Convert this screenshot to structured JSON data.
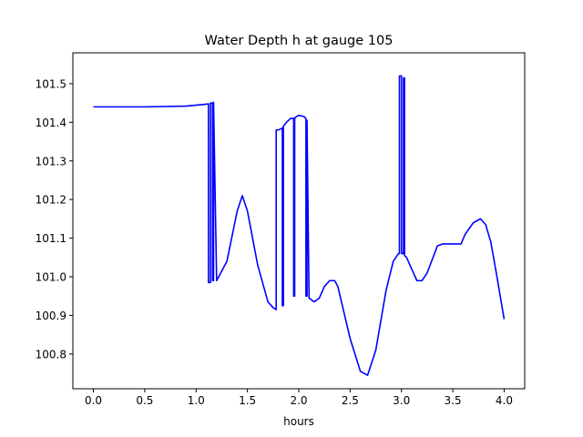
{
  "chart_data": {
    "type": "line",
    "title": "Water Depth h at gauge 105",
    "xlabel": "hours",
    "ylabel": "",
    "xlim": [
      -0.2,
      4.2
    ],
    "ylim": [
      100.71,
      101.58
    ],
    "xticks": [
      0.0,
      0.5,
      1.0,
      1.5,
      2.0,
      2.5,
      3.0,
      3.5,
      4.0
    ],
    "xtick_labels": [
      "0.0",
      "0.5",
      "1.0",
      "1.5",
      "2.0",
      "2.5",
      "3.0",
      "3.5",
      "4.0"
    ],
    "yticks": [
      100.8,
      100.9,
      101.0,
      101.1,
      101.2,
      101.3,
      101.4,
      101.5
    ],
    "ytick_labels": [
      "100.8",
      "100.9",
      "101.0",
      "101.1",
      "101.2",
      "101.3",
      "101.4",
      "101.5"
    ],
    "grid": false,
    "series": [
      {
        "name": "",
        "color": "#0000ff",
        "x": [
          0.0,
          0.5,
          0.9,
          1.1,
          1.12,
          1.12,
          1.14,
          1.14,
          1.16,
          1.16,
          1.17,
          1.17,
          1.2,
          1.3,
          1.4,
          1.45,
          1.5,
          1.6,
          1.7,
          1.75,
          1.78,
          1.78,
          1.8,
          1.84,
          1.84,
          1.85,
          1.85,
          1.88,
          1.92,
          1.95,
          1.95,
          1.96,
          1.96,
          2.0,
          2.05,
          2.07,
          2.07,
          2.08,
          2.08,
          2.1,
          2.15,
          2.2,
          2.25,
          2.3,
          2.35,
          2.38,
          2.42,
          2.5,
          2.6,
          2.67,
          2.75,
          2.85,
          2.92,
          2.97,
          2.98,
          2.98,
          3.0,
          3.0,
          3.02,
          3.02,
          3.03,
          3.03,
          3.05,
          3.1,
          3.15,
          3.2,
          3.25,
          3.3,
          3.35,
          3.4,
          3.45,
          3.5,
          3.55,
          3.58,
          3.62,
          3.7,
          3.77,
          3.82,
          3.87,
          3.93,
          4.0
        ],
        "y": [
          101.44,
          101.44,
          101.442,
          101.447,
          101.448,
          100.985,
          100.985,
          101.45,
          101.45,
          100.99,
          100.99,
          101.452,
          100.99,
          101.04,
          101.17,
          101.21,
          101.17,
          101.03,
          100.935,
          100.92,
          100.915,
          101.38,
          101.38,
          101.385,
          100.925,
          100.925,
          101.39,
          101.4,
          101.41,
          101.41,
          100.95,
          100.95,
          101.412,
          101.418,
          101.415,
          101.41,
          100.95,
          100.95,
          101.405,
          100.945,
          100.935,
          100.945,
          100.975,
          100.99,
          100.99,
          100.975,
          100.93,
          100.84,
          100.755,
          100.745,
          100.81,
          100.965,
          101.04,
          101.06,
          101.06,
          101.52,
          101.52,
          101.06,
          101.06,
          101.515,
          101.515,
          101.055,
          101.05,
          101.02,
          100.99,
          100.99,
          101.01,
          101.045,
          101.08,
          101.085,
          101.085,
          101.085,
          101.085,
          101.085,
          101.11,
          101.14,
          101.15,
          101.135,
          101.09,
          101.0,
          100.89
        ]
      }
    ]
  }
}
